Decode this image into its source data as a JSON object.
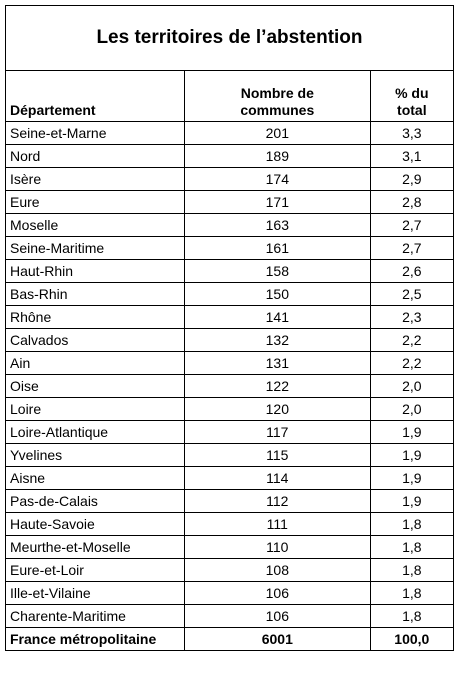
{
  "title": "Les territoires de l’abstention",
  "headers": {
    "departement": "Département",
    "communes_line1": "Nombre de",
    "communes_line2": "communes",
    "pct_line1": "% du",
    "pct_line2": "total"
  },
  "rows": [
    {
      "dept": "Seine-et-Marne",
      "count": "201",
      "pct": "3,3"
    },
    {
      "dept": "Nord",
      "count": "189",
      "pct": "3,1"
    },
    {
      "dept": "Isère",
      "count": "174",
      "pct": "2,9"
    },
    {
      "dept": "Eure",
      "count": "171",
      "pct": "2,8"
    },
    {
      "dept": "Moselle",
      "count": "163",
      "pct": "2,7"
    },
    {
      "dept": "Seine-Maritime",
      "count": "161",
      "pct": "2,7"
    },
    {
      "dept": "Haut-Rhin",
      "count": "158",
      "pct": "2,6"
    },
    {
      "dept": "Bas-Rhin",
      "count": "150",
      "pct": "2,5"
    },
    {
      "dept": "Rhône",
      "count": "141",
      "pct": "2,3"
    },
    {
      "dept": "Calvados",
      "count": "132",
      "pct": "2,2"
    },
    {
      "dept": "Ain",
      "count": "131",
      "pct": "2,2"
    },
    {
      "dept": "Oise",
      "count": "122",
      "pct": "2,0"
    },
    {
      "dept": "Loire",
      "count": "120",
      "pct": "2,0"
    },
    {
      "dept": "Loire-Atlantique",
      "count": "117",
      "pct": "1,9"
    },
    {
      "dept": "Yvelines",
      "count": "115",
      "pct": "1,9"
    },
    {
      "dept": "Aisne",
      "count": "114",
      "pct": "1,9"
    },
    {
      "dept": "Pas-de-Calais",
      "count": "112",
      "pct": "1,9"
    },
    {
      "dept": "Haute-Savoie",
      "count": "111",
      "pct": "1,8"
    },
    {
      "dept": "Meurthe-et-Moselle",
      "count": "110",
      "pct": "1,8"
    },
    {
      "dept": "Eure-et-Loir",
      "count": "108",
      "pct": "1,8"
    },
    {
      "dept": "Ille-et-Vilaine",
      "count": "106",
      "pct": "1,8"
    },
    {
      "dept": "Charente-Maritime",
      "count": "106",
      "pct": "1,8"
    }
  ],
  "total": {
    "dept": "France métropolitaine",
    "count": "6001",
    "pct": "100,0"
  }
}
